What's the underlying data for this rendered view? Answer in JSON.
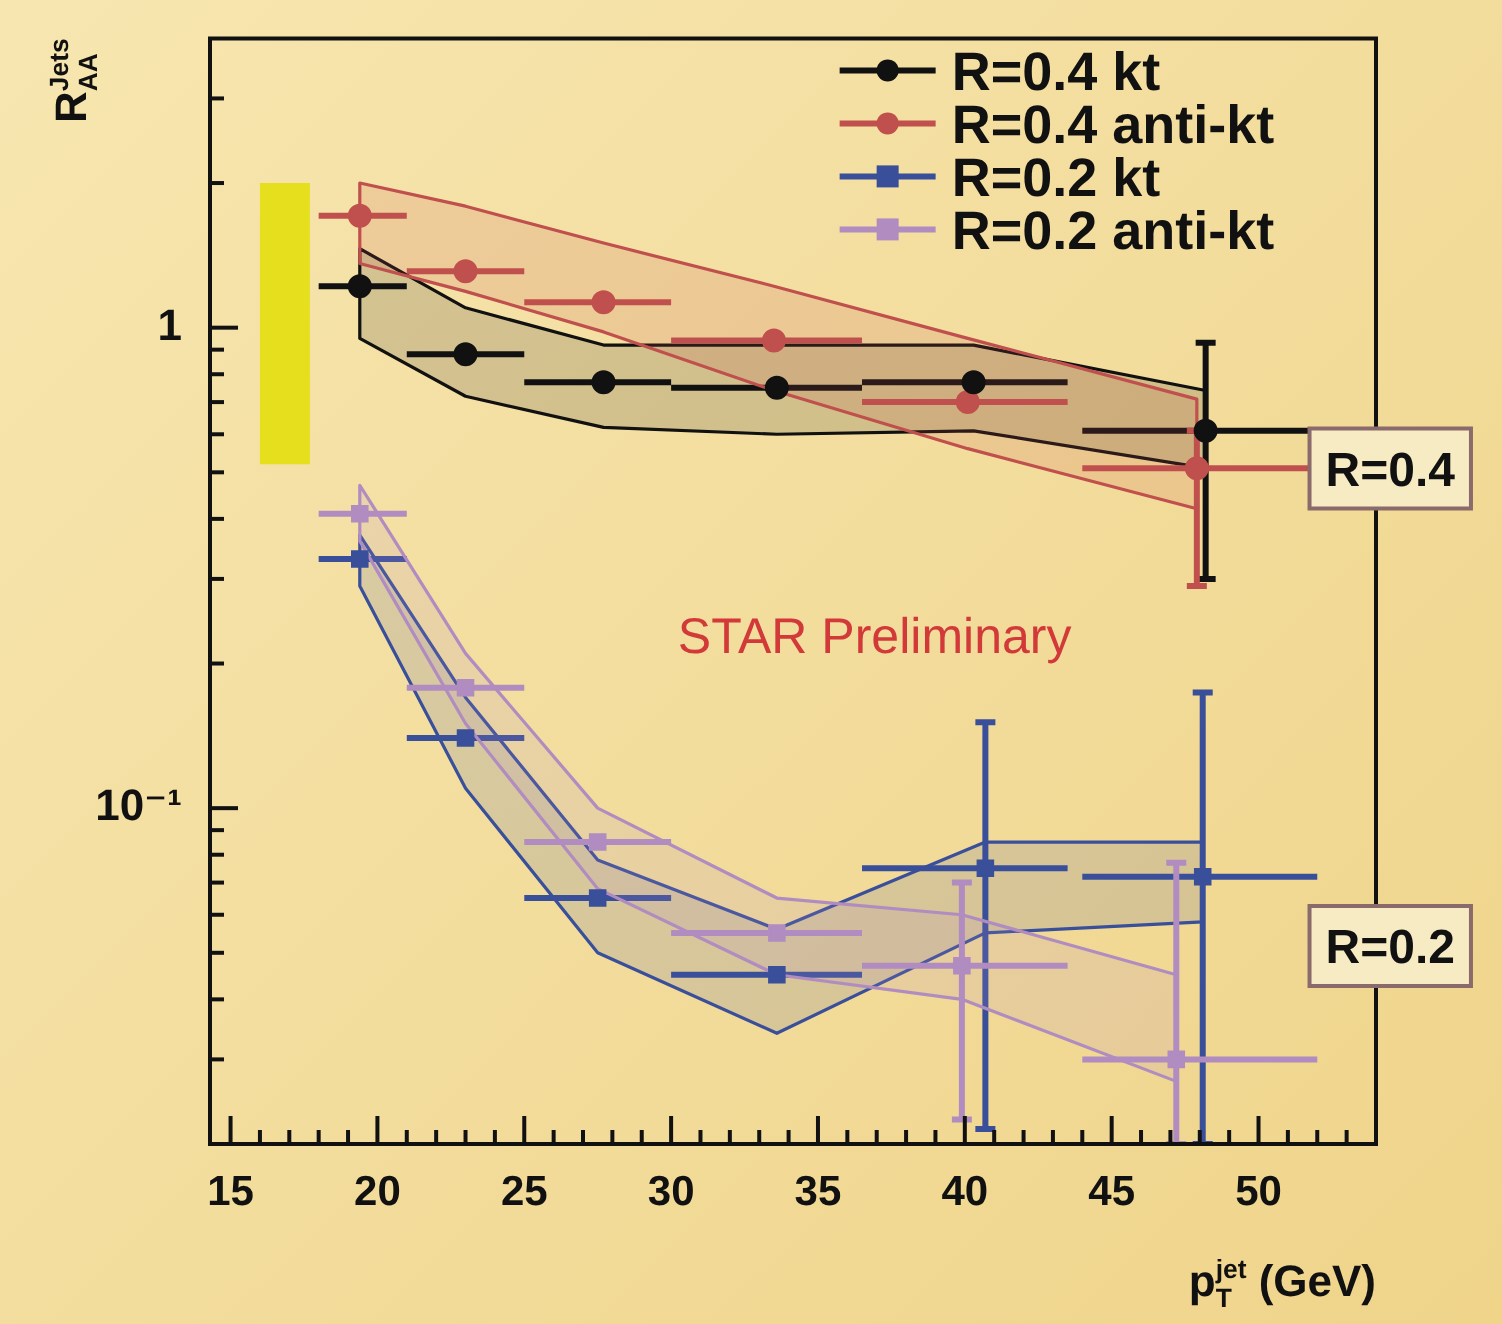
{
  "chart_data": {
    "type": "scatter",
    "xlabel": "p$_{T}$$^{jet}$ (GeV)",
    "ylabel": "R$^{Jets}$$_{AA}$",
    "log": "y",
    "grid": false,
    "legend": "top right",
    "xlim": [
      14.3,
      54
    ],
    "ylim": [
      0.02,
      4
    ],
    "xticks": [
      15,
      {
        "value": 16,
        "label": null
      },
      {
        "value": 17,
        "label": null
      },
      {
        "value": 18,
        "label": null
      },
      {
        "value": 19,
        "label": null
      },
      20,
      {
        "value": 21,
        "label": null
      },
      {
        "value": 22,
        "label": null
      },
      {
        "value": 23,
        "label": null
      },
      {
        "value": 24,
        "label": null
      },
      25,
      {
        "value": 26,
        "label": null
      },
      {
        "value": 27,
        "label": null
      },
      {
        "value": 28,
        "label": null
      },
      {
        "value": 29,
        "label": null
      },
      30,
      {
        "value": 31,
        "label": null
      },
      {
        "value": 32,
        "label": null
      },
      {
        "value": 33,
        "label": null
      },
      {
        "value": 34,
        "label": null
      },
      35,
      {
        "value": 36,
        "label": null
      },
      {
        "value": 37,
        "label": null
      },
      {
        "value": 38,
        "label": null
      },
      {
        "value": 39,
        "label": null
      },
      40,
      {
        "value": 41,
        "label": null
      },
      {
        "value": 42,
        "label": null
      },
      {
        "value": 43,
        "label": null
      },
      {
        "value": 44,
        "label": null
      },
      45,
      {
        "value": 46,
        "label": null
      },
      {
        "value": 47,
        "label": null
      },
      {
        "value": 48,
        "label": null
      },
      {
        "value": 49,
        "label": null
      },
      50,
      {
        "value": 51,
        "label": null
      },
      {
        "value": 52,
        "label": null
      },
      {
        "value": 53,
        "label": null
      }
    ],
    "yticks": [
      {
        "value": 0.02,
        "label": null
      },
      {
        "value": 0.03,
        "label": null
      },
      {
        "value": 0.04,
        "label": null
      },
      {
        "value": 0.05,
        "label": null
      },
      {
        "value": 0.06,
        "label": null
      },
      {
        "value": 0.07,
        "label": null
      },
      {
        "value": 0.08,
        "label": null
      },
      {
        "value": 0.09,
        "label": null
      },
      {
        "value": 0.1,
        "label": "10⁻¹"
      },
      {
        "value": 0.2,
        "label": null
      },
      {
        "value": 0.3,
        "label": null
      },
      {
        "value": 0.4,
        "label": null
      },
      {
        "value": 0.5,
        "label": null
      },
      {
        "value": 0.6,
        "label": null
      },
      {
        "value": 0.7,
        "label": null
      },
      {
        "value": 0.8,
        "label": null
      },
      {
        "value": 0.9,
        "label": null
      },
      1,
      {
        "value": 2,
        "label": null
      },
      {
        "value": 3,
        "label": null
      }
    ],
    "series": [
      {
        "type": "bar",
        "color": "#e6df1e",
        "x": [
          16.85
        ],
        "base": [
          0.52
        ],
        "values": [
          1.48
        ]
      },
      {
        "name": "R=0.4 kt",
        "color": "#111111",
        "marker": "circle",
        "x": [
          19.4,
          23.0,
          27.7,
          33.6,
          40.3,
          48.2
        ],
        "values": [
          1.22,
          0.88,
          0.77,
          0.75,
          0.77,
          0.61
        ],
        "xerrors": [
          [
            18,
            21
          ],
          [
            21,
            25
          ],
          [
            25,
            30
          ],
          [
            30,
            36.5
          ],
          [
            36.5,
            43.5
          ],
          [
            44,
            52
          ]
        ],
        "errors": [
          null,
          null,
          null,
          null,
          null,
          [
            0.3,
            0.93
          ]
        ],
        "upper": [
          1.46,
          1.1,
          0.92,
          0.92,
          0.92,
          0.74
        ],
        "lower": [
          0.95,
          0.72,
          0.62,
          0.6,
          0.61,
          0.51
        ]
      },
      {
        "name": "R=0.4 anti-kt",
        "color": "#c0504d",
        "marker": "circle",
        "x": [
          19.4,
          23.0,
          27.7,
          33.5,
          40.1,
          47.9
        ],
        "values": [
          1.71,
          1.31,
          1.13,
          0.94,
          0.7,
          0.51
        ],
        "xerrors": [
          [
            18,
            21
          ],
          [
            21,
            25
          ],
          [
            25,
            30
          ],
          [
            30,
            36.5
          ],
          [
            36.5,
            43.5
          ],
          [
            44,
            52
          ]
        ],
        "errors": [
          null,
          null,
          null,
          null,
          null,
          [
            0.29,
            0.61
          ]
        ],
        "upper": [
          2.0,
          1.79,
          1.5,
          1.22,
          0.95,
          0.71
        ],
        "lower": [
          1.36,
          1.19,
          0.98,
          0.74,
          0.56,
          0.42
        ]
      },
      {
        "name": "R=0.2 kt",
        "color": "#3a4f9a",
        "marker": "square",
        "x": [
          19.4,
          23.0,
          27.5,
          33.6,
          40.7,
          48.1
        ],
        "values": [
          0.33,
          0.14,
          0.065,
          0.045,
          0.075,
          0.072
        ],
        "xerrors": [
          [
            18,
            21
          ],
          [
            21,
            25
          ],
          [
            25,
            30
          ],
          [
            30,
            36.5
          ],
          [
            36.5,
            43.5
          ],
          [
            44,
            52
          ]
        ],
        "errors": [
          null,
          null,
          null,
          null,
          [
            0.0215,
            0.151
          ],
          [
            0.02,
            0.174
          ]
        ],
        "upper": [
          0.37,
          0.17,
          0.078,
          0.056,
          0.085,
          0.085
        ],
        "lower": [
          0.29,
          0.11,
          0.05,
          0.034,
          0.055,
          0.058
        ]
      },
      {
        "name": "R=0.2 anti-kt",
        "color": "#b08cc0",
        "marker": "square",
        "x": [
          19.4,
          23.0,
          27.5,
          33.6,
          39.9,
          47.2
        ],
        "values": [
          0.41,
          0.178,
          0.085,
          0.055,
          0.047,
          0.03
        ],
        "xerrors": [
          [
            18,
            21
          ],
          [
            21,
            25
          ],
          [
            25,
            30
          ],
          [
            30,
            36.5
          ],
          [
            36.5,
            43.5
          ],
          [
            44,
            52
          ]
        ],
        "errors": [
          null,
          null,
          null,
          null,
          [
            0.0225,
            0.07
          ],
          [
            0.02,
            0.077
          ]
        ],
        "upper": [
          0.47,
          0.21,
          0.1,
          0.065,
          0.06,
          0.045
        ],
        "lower": [
          0.36,
          0.15,
          0.068,
          0.045,
          0.04,
          0.027
        ]
      }
    ],
    "annotations": [
      "STAR Preliminary",
      "R=0.4",
      "R=0.2"
    ]
  }
}
